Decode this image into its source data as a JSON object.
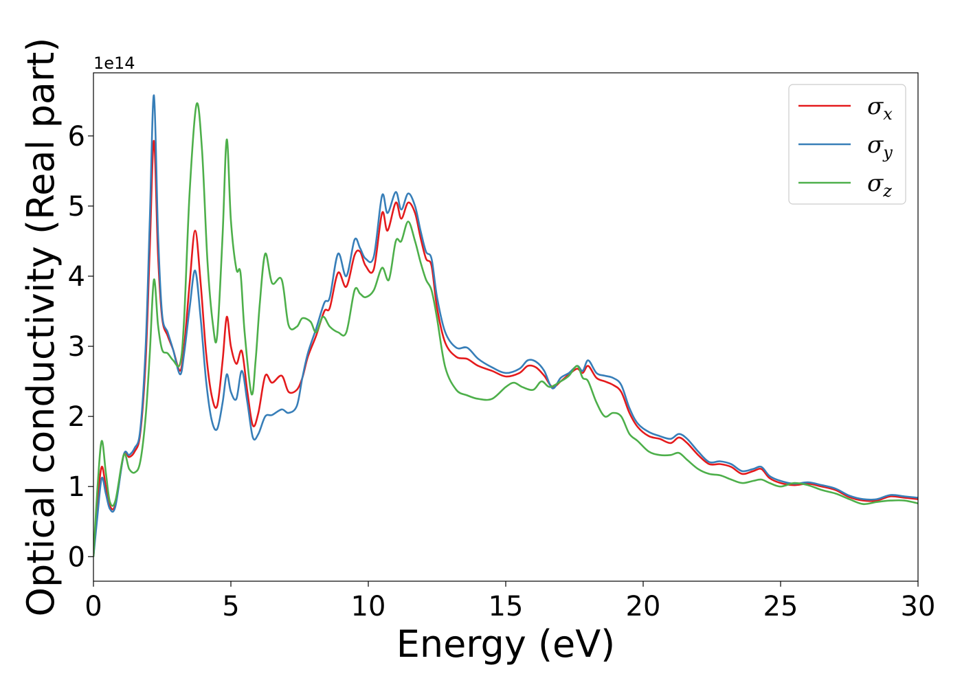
{
  "chart_data": {
    "type": "line",
    "xlabel": "Energy (eV)",
    "ylabel": "Optical conductivity (Real part)",
    "y_offset_label": "1e14",
    "xlim": [
      0,
      30
    ],
    "ylim": [
      -0.35,
      6.9
    ],
    "x_ticks": [
      0,
      5,
      10,
      15,
      20,
      25,
      30
    ],
    "y_ticks": [
      0,
      1,
      2,
      3,
      4,
      5,
      6
    ],
    "grid": false,
    "legend_position": "top-right",
    "series": [
      {
        "symbol": "σ",
        "subscript": "x",
        "color": "#e41a1c",
        "points": [
          [
            0,
            0
          ],
          [
            0.15,
            0.8
          ],
          [
            0.3,
            1.28
          ],
          [
            0.45,
            1.0
          ],
          [
            0.6,
            0.72
          ],
          [
            0.8,
            0.75
          ],
          [
            1.1,
            1.45
          ],
          [
            1.3,
            1.42
          ],
          [
            1.5,
            1.5
          ],
          [
            1.7,
            1.75
          ],
          [
            1.9,
            2.8
          ],
          [
            2.05,
            4.4
          ],
          [
            2.2,
            5.93
          ],
          [
            2.35,
            4.3
          ],
          [
            2.5,
            3.4
          ],
          [
            2.7,
            3.15
          ],
          [
            2.9,
            2.95
          ],
          [
            3.15,
            2.65
          ],
          [
            3.3,
            3.0
          ],
          [
            3.5,
            3.9
          ],
          [
            3.7,
            4.65
          ],
          [
            3.9,
            3.9
          ],
          [
            4.1,
            2.9
          ],
          [
            4.3,
            2.3
          ],
          [
            4.5,
            2.15
          ],
          [
            4.7,
            2.8
          ],
          [
            4.85,
            3.42
          ],
          [
            5.0,
            3.0
          ],
          [
            5.2,
            2.75
          ],
          [
            5.4,
            2.93
          ],
          [
            5.6,
            2.35
          ],
          [
            5.8,
            1.87
          ],
          [
            6.0,
            2.05
          ],
          [
            6.25,
            2.58
          ],
          [
            6.5,
            2.48
          ],
          [
            6.85,
            2.58
          ],
          [
            7.1,
            2.35
          ],
          [
            7.4,
            2.38
          ],
          [
            7.6,
            2.55
          ],
          [
            7.8,
            2.85
          ],
          [
            8.1,
            3.15
          ],
          [
            8.4,
            3.5
          ],
          [
            8.6,
            3.55
          ],
          [
            8.9,
            4.05
          ],
          [
            9.2,
            3.85
          ],
          [
            9.5,
            4.3
          ],
          [
            9.7,
            4.35
          ],
          [
            9.9,
            4.15
          ],
          [
            10.2,
            4.1
          ],
          [
            10.5,
            4.9
          ],
          [
            10.7,
            4.65
          ],
          [
            11.0,
            5.05
          ],
          [
            11.2,
            4.82
          ],
          [
            11.45,
            5.05
          ],
          [
            11.7,
            4.9
          ],
          [
            11.9,
            4.55
          ],
          [
            12.1,
            4.25
          ],
          [
            12.3,
            4.15
          ],
          [
            12.5,
            3.55
          ],
          [
            12.8,
            3.05
          ],
          [
            13.2,
            2.85
          ],
          [
            13.6,
            2.82
          ],
          [
            14.0,
            2.72
          ],
          [
            14.5,
            2.65
          ],
          [
            15.0,
            2.57
          ],
          [
            15.5,
            2.62
          ],
          [
            15.8,
            2.72
          ],
          [
            16.1,
            2.7
          ],
          [
            16.4,
            2.58
          ],
          [
            16.7,
            2.42
          ],
          [
            17.0,
            2.5
          ],
          [
            17.3,
            2.6
          ],
          [
            17.6,
            2.68
          ],
          [
            17.8,
            2.62
          ],
          [
            18.0,
            2.72
          ],
          [
            18.3,
            2.55
          ],
          [
            18.6,
            2.5
          ],
          [
            18.9,
            2.45
          ],
          [
            19.2,
            2.35
          ],
          [
            19.5,
            2.05
          ],
          [
            19.8,
            1.85
          ],
          [
            20.2,
            1.72
          ],
          [
            20.6,
            1.68
          ],
          [
            21.0,
            1.62
          ],
          [
            21.3,
            1.7
          ],
          [
            21.6,
            1.62
          ],
          [
            22.0,
            1.45
          ],
          [
            22.4,
            1.32
          ],
          [
            22.8,
            1.32
          ],
          [
            23.2,
            1.28
          ],
          [
            23.6,
            1.18
          ],
          [
            24.0,
            1.22
          ],
          [
            24.3,
            1.25
          ],
          [
            24.6,
            1.12
          ],
          [
            25.0,
            1.05
          ],
          [
            25.5,
            1.02
          ],
          [
            26.0,
            1.04
          ],
          [
            26.5,
            1.0
          ],
          [
            27.0,
            0.95
          ],
          [
            27.5,
            0.85
          ],
          [
            28.0,
            0.8
          ],
          [
            28.5,
            0.8
          ],
          [
            29.0,
            0.86
          ],
          [
            29.5,
            0.84
          ],
          [
            30.0,
            0.82
          ]
        ]
      },
      {
        "symbol": "σ",
        "subscript": "y",
        "color": "#377eb8",
        "points": [
          [
            0,
            0
          ],
          [
            0.15,
            0.6
          ],
          [
            0.3,
            1.12
          ],
          [
            0.45,
            0.9
          ],
          [
            0.6,
            0.68
          ],
          [
            0.8,
            0.72
          ],
          [
            1.1,
            1.45
          ],
          [
            1.3,
            1.45
          ],
          [
            1.5,
            1.55
          ],
          [
            1.7,
            1.8
          ],
          [
            1.9,
            3.0
          ],
          [
            2.05,
            4.8
          ],
          [
            2.2,
            6.58
          ],
          [
            2.35,
            4.6
          ],
          [
            2.5,
            3.45
          ],
          [
            2.7,
            3.2
          ],
          [
            2.9,
            2.95
          ],
          [
            3.15,
            2.6
          ],
          [
            3.3,
            2.9
          ],
          [
            3.5,
            3.55
          ],
          [
            3.7,
            4.08
          ],
          [
            3.9,
            3.4
          ],
          [
            4.1,
            2.5
          ],
          [
            4.3,
            1.95
          ],
          [
            4.5,
            1.82
          ],
          [
            4.7,
            2.2
          ],
          [
            4.85,
            2.6
          ],
          [
            5.0,
            2.35
          ],
          [
            5.2,
            2.25
          ],
          [
            5.4,
            2.65
          ],
          [
            5.6,
            2.2
          ],
          [
            5.8,
            1.7
          ],
          [
            6.0,
            1.75
          ],
          [
            6.25,
            2.0
          ],
          [
            6.5,
            2.02
          ],
          [
            6.85,
            2.1
          ],
          [
            7.1,
            2.05
          ],
          [
            7.4,
            2.15
          ],
          [
            7.6,
            2.55
          ],
          [
            7.8,
            2.9
          ],
          [
            8.1,
            3.25
          ],
          [
            8.4,
            3.62
          ],
          [
            8.6,
            3.7
          ],
          [
            8.9,
            4.32
          ],
          [
            9.2,
            4.0
          ],
          [
            9.5,
            4.52
          ],
          [
            9.7,
            4.4
          ],
          [
            9.9,
            4.25
          ],
          [
            10.2,
            4.28
          ],
          [
            10.5,
            5.15
          ],
          [
            10.7,
            4.9
          ],
          [
            11.0,
            5.2
          ],
          [
            11.2,
            4.95
          ],
          [
            11.45,
            5.18
          ],
          [
            11.7,
            5.0
          ],
          [
            11.9,
            4.65
          ],
          [
            12.1,
            4.35
          ],
          [
            12.3,
            4.25
          ],
          [
            12.5,
            3.7
          ],
          [
            12.8,
            3.2
          ],
          [
            13.2,
            2.98
          ],
          [
            13.6,
            2.98
          ],
          [
            14.0,
            2.82
          ],
          [
            14.5,
            2.7
          ],
          [
            15.0,
            2.62
          ],
          [
            15.5,
            2.68
          ],
          [
            15.8,
            2.8
          ],
          [
            16.1,
            2.78
          ],
          [
            16.4,
            2.65
          ],
          [
            16.7,
            2.4
          ],
          [
            17.0,
            2.55
          ],
          [
            17.3,
            2.62
          ],
          [
            17.6,
            2.72
          ],
          [
            17.8,
            2.65
          ],
          [
            18.0,
            2.8
          ],
          [
            18.3,
            2.62
          ],
          [
            18.6,
            2.58
          ],
          [
            18.9,
            2.55
          ],
          [
            19.2,
            2.45
          ],
          [
            19.5,
            2.12
          ],
          [
            19.8,
            1.9
          ],
          [
            20.2,
            1.78
          ],
          [
            20.6,
            1.72
          ],
          [
            21.0,
            1.68
          ],
          [
            21.3,
            1.75
          ],
          [
            21.6,
            1.68
          ],
          [
            22.0,
            1.5
          ],
          [
            22.4,
            1.35
          ],
          [
            22.8,
            1.36
          ],
          [
            23.2,
            1.32
          ],
          [
            23.6,
            1.22
          ],
          [
            24.0,
            1.25
          ],
          [
            24.3,
            1.28
          ],
          [
            24.6,
            1.15
          ],
          [
            25.0,
            1.08
          ],
          [
            25.5,
            1.04
          ],
          [
            26.0,
            1.06
          ],
          [
            26.5,
            1.02
          ],
          [
            27.0,
            0.97
          ],
          [
            27.5,
            0.87
          ],
          [
            28.0,
            0.82
          ],
          [
            28.5,
            0.82
          ],
          [
            29.0,
            0.88
          ],
          [
            29.5,
            0.86
          ],
          [
            30.0,
            0.84
          ]
        ]
      },
      {
        "symbol": "σ",
        "subscript": "z",
        "color": "#4daf4a",
        "points": [
          [
            0,
            0
          ],
          [
            0.15,
            1.0
          ],
          [
            0.3,
            1.65
          ],
          [
            0.45,
            1.2
          ],
          [
            0.6,
            0.78
          ],
          [
            0.8,
            0.8
          ],
          [
            1.1,
            1.45
          ],
          [
            1.3,
            1.25
          ],
          [
            1.5,
            1.2
          ],
          [
            1.7,
            1.35
          ],
          [
            1.9,
            2.0
          ],
          [
            2.05,
            2.9
          ],
          [
            2.2,
            3.95
          ],
          [
            2.35,
            3.3
          ],
          [
            2.5,
            2.95
          ],
          [
            2.7,
            2.9
          ],
          [
            2.9,
            2.8
          ],
          [
            3.15,
            2.75
          ],
          [
            3.3,
            3.4
          ],
          [
            3.5,
            5.2
          ],
          [
            3.75,
            6.45
          ],
          [
            3.95,
            5.8
          ],
          [
            4.15,
            4.2
          ],
          [
            4.35,
            3.3
          ],
          [
            4.5,
            3.15
          ],
          [
            4.7,
            4.6
          ],
          [
            4.85,
            5.95
          ],
          [
            5.0,
            4.8
          ],
          [
            5.2,
            4.1
          ],
          [
            5.35,
            4.05
          ],
          [
            5.5,
            3.2
          ],
          [
            5.75,
            2.32
          ],
          [
            5.9,
            2.8
          ],
          [
            6.05,
            3.6
          ],
          [
            6.25,
            4.32
          ],
          [
            6.5,
            3.9
          ],
          [
            6.85,
            3.95
          ],
          [
            7.1,
            3.3
          ],
          [
            7.4,
            3.28
          ],
          [
            7.6,
            3.4
          ],
          [
            7.9,
            3.35
          ],
          [
            8.1,
            3.2
          ],
          [
            8.35,
            3.42
          ],
          [
            8.6,
            3.28
          ],
          [
            8.9,
            3.2
          ],
          [
            9.2,
            3.2
          ],
          [
            9.5,
            3.8
          ],
          [
            9.7,
            3.75
          ],
          [
            9.9,
            3.7
          ],
          [
            10.2,
            3.8
          ],
          [
            10.5,
            4.12
          ],
          [
            10.75,
            3.95
          ],
          [
            11.0,
            4.5
          ],
          [
            11.2,
            4.5
          ],
          [
            11.45,
            4.78
          ],
          [
            11.7,
            4.5
          ],
          [
            11.9,
            4.2
          ],
          [
            12.1,
            3.95
          ],
          [
            12.3,
            3.8
          ],
          [
            12.5,
            3.4
          ],
          [
            12.8,
            2.7
          ],
          [
            13.2,
            2.38
          ],
          [
            13.6,
            2.3
          ],
          [
            14.0,
            2.25
          ],
          [
            14.5,
            2.25
          ],
          [
            15.0,
            2.42
          ],
          [
            15.3,
            2.48
          ],
          [
            15.6,
            2.42
          ],
          [
            16.0,
            2.38
          ],
          [
            16.3,
            2.5
          ],
          [
            16.6,
            2.42
          ],
          [
            17.0,
            2.5
          ],
          [
            17.3,
            2.58
          ],
          [
            17.6,
            2.72
          ],
          [
            17.8,
            2.55
          ],
          [
            18.0,
            2.5
          ],
          [
            18.3,
            2.2
          ],
          [
            18.6,
            2.0
          ],
          [
            18.9,
            2.05
          ],
          [
            19.2,
            2.0
          ],
          [
            19.5,
            1.75
          ],
          [
            19.8,
            1.65
          ],
          [
            20.2,
            1.5
          ],
          [
            20.6,
            1.45
          ],
          [
            21.0,
            1.45
          ],
          [
            21.3,
            1.48
          ],
          [
            21.6,
            1.38
          ],
          [
            22.0,
            1.25
          ],
          [
            22.4,
            1.18
          ],
          [
            22.8,
            1.16
          ],
          [
            23.2,
            1.1
          ],
          [
            23.6,
            1.05
          ],
          [
            24.0,
            1.08
          ],
          [
            24.3,
            1.1
          ],
          [
            24.6,
            1.05
          ],
          [
            25.0,
            1.0
          ],
          [
            25.5,
            1.05
          ],
          [
            26.0,
            1.02
          ],
          [
            26.5,
            0.95
          ],
          [
            27.0,
            0.9
          ],
          [
            27.5,
            0.82
          ],
          [
            28.0,
            0.75
          ],
          [
            28.5,
            0.78
          ],
          [
            29.0,
            0.8
          ],
          [
            29.5,
            0.8
          ],
          [
            30.0,
            0.76
          ]
        ]
      }
    ]
  }
}
